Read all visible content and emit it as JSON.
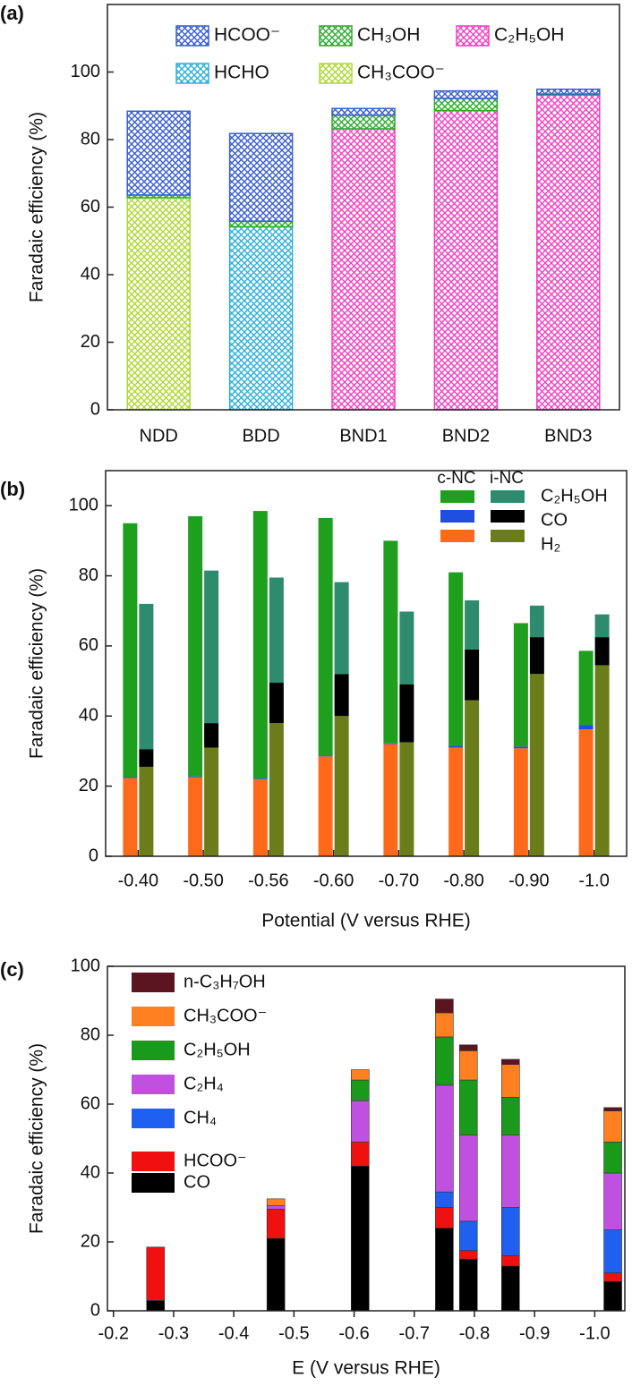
{
  "chart_data": [
    {
      "type": "bar",
      "stacked": true,
      "pattern": "crosshatch",
      "panel_label": "(a)",
      "ylabel": "Faradaic efficiency (%)",
      "categories": [
        "NDD",
        "BDD",
        "BND1",
        "BND2",
        "BND3"
      ],
      "series": [
        {
          "name": "HCOO⁻",
          "color": "#3a5fd0",
          "values": [
            24.8,
            26,
            2,
            2.2,
            1.4
          ]
        },
        {
          "name": "CH₃OH",
          "color": "#2eaa2e",
          "values": [
            0.8,
            1.6,
            4,
            3.6,
            0.3
          ]
        },
        {
          "name": "C₂H₅OH",
          "color": "#f040c0",
          "values": [
            null,
            null,
            83.2,
            88.6,
            93.2
          ]
        },
        {
          "name": "HCHO",
          "color": "#30b0d8",
          "values": [
            null,
            54.2,
            null,
            null,
            null
          ]
        },
        {
          "name": "CH₃COO⁻",
          "color": "#b0d838",
          "values": [
            62.8,
            null,
            null,
            null,
            null
          ]
        }
      ],
      "ylim": [
        0,
        120
      ],
      "yticks": [
        0,
        20,
        40,
        60,
        80,
        100
      ]
    },
    {
      "type": "grouped_stacked_bar",
      "panel_label": "(b)",
      "xlabel": "Potential (V versus RHE)",
      "ylabel": "Faradaic efficiency (%)",
      "categories": [
        "-0.40",
        "-0.50",
        "-0.56",
        "-0.60",
        "-0.70",
        "-0.80",
        "-0.90",
        "-1.0"
      ],
      "series_names": [
        "C₂H₅OH",
        "CO",
        "H₂"
      ],
      "groups": [
        {
          "name": "c-NC",
          "series": [
            {
              "color": "#1ea01e",
              "values": [
                72.4,
                74.2,
                76.3,
                67.8,
                57.8,
                49.5,
                35.2,
                21.2
              ]
            },
            {
              "color": "#1f4fe0",
              "values": [
                0.3,
                0.3,
                0.2,
                0.2,
                0.2,
                0.5,
                0.5,
                1.2
              ]
            },
            {
              "color": "#ff6a1a",
              "values": [
                22.3,
                22.5,
                22,
                28.5,
                32,
                31,
                30.8,
                36.2
              ]
            }
          ]
        },
        {
          "name": "i-NC",
          "series": [
            {
              "color": "#2e8b6e",
              "values": [
                41.5,
                43.5,
                30,
                26.2,
                20.8,
                14,
                9,
                6.5
              ]
            },
            {
              "color": "#000000",
              "values": [
                5,
                7,
                11.5,
                12,
                16.5,
                14.5,
                10.5,
                8
              ]
            },
            {
              "color": "#6b7d1a",
              "values": [
                25.5,
                31,
                38,
                40,
                32.5,
                44.5,
                52,
                54.5
              ]
            }
          ]
        }
      ],
      "ylim": [
        0,
        110
      ],
      "yticks": [
        0,
        20,
        40,
        60,
        80,
        100
      ]
    },
    {
      "type": "stacked_bar_numeric_x",
      "panel_label": "(c)",
      "xlabel": "E (V versus RHE)",
      "ylabel": "Faradaic efficiency (%)",
      "x": [
        -0.27,
        -0.47,
        -0.61,
        -0.75,
        -0.79,
        -0.86,
        -1.03
      ],
      "series": [
        {
          "name": "CO",
          "color": "#000000",
          "values": [
            3,
            21,
            42,
            24,
            15,
            13,
            8.5
          ]
        },
        {
          "name": "HCOO⁻",
          "color": "#f01010",
          "values": [
            15.5,
            8.5,
            7,
            6,
            2.5,
            3,
            2.5
          ]
        },
        {
          "name": "CH₄",
          "color": "#2060f0",
          "values": [
            null,
            null,
            null,
            4.5,
            8.5,
            14,
            12.5
          ]
        },
        {
          "name": "C₂H₄",
          "color": "#c050e0",
          "values": [
            null,
            1,
            12,
            31,
            25,
            21,
            16.5
          ]
        },
        {
          "name": "C₂H₅OH",
          "color": "#1a9a1a",
          "values": [
            null,
            null,
            6,
            14,
            16,
            11,
            9
          ]
        },
        {
          "name": "CH₃COO⁻",
          "color": "#ff8020",
          "values": [
            null,
            2,
            3,
            7,
            8.5,
            9.5,
            9
          ]
        },
        {
          "name": "n-C₃H₇OH",
          "color": "#5a1520",
          "values": [
            null,
            null,
            null,
            4,
            1.7,
            1.5,
            1
          ]
        }
      ],
      "xlim": [
        -0.19,
        -1.05
      ],
      "xticks": [
        -0.2,
        -0.3,
        -0.4,
        -0.5,
        -0.6,
        -0.7,
        -0.8,
        -0.9,
        {
          "value": -1,
          "label": "-1.0"
        }
      ],
      "ylim": [
        0,
        100
      ],
      "yticks": [
        0,
        20,
        40,
        60,
        80,
        100
      ]
    }
  ]
}
